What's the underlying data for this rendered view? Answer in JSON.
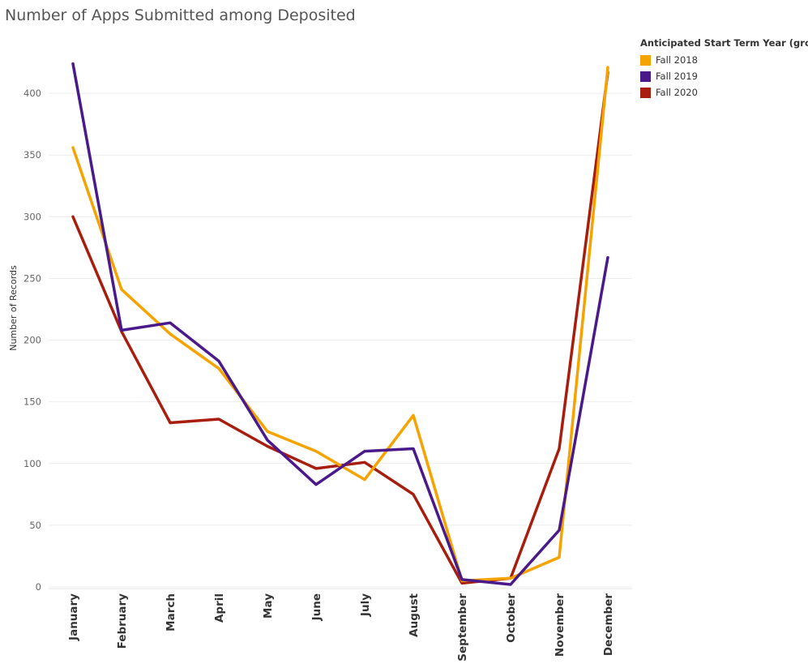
{
  "colors": {
    "Fall 2018": "#f5a300",
    "Fall 2019": "#4a1a8a",
    "Fall 2020": "#a81e0e"
  },
  "chart_data": {
    "type": "line",
    "title": "Number of Apps Submitted among Deposited",
    "xlabel": "",
    "ylabel": "Number of Records",
    "ylim": [
      0,
      425
    ],
    "yticks": [
      0,
      50,
      100,
      150,
      200,
      250,
      300,
      350,
      400
    ],
    "grid": true,
    "legend_position": "top-right",
    "legend_title": "Anticipated Start Term Year (group)",
    "categories": [
      "January",
      "February",
      "March",
      "April",
      "May",
      "June",
      "July",
      "August",
      "September",
      "October",
      "November",
      "December"
    ],
    "series": [
      {
        "name": "Fall 2018",
        "values": [
          356,
          241,
          205,
          177,
          126,
          110,
          87,
          139,
          5,
          7,
          24,
          421
        ]
      },
      {
        "name": "Fall 2019",
        "values": [
          424,
          208,
          214,
          183,
          119,
          83,
          110,
          112,
          6,
          2,
          46,
          267
        ]
      },
      {
        "name": "Fall 2020",
        "values": [
          300,
          207,
          133,
          136,
          114,
          96,
          101,
          75,
          3,
          7,
          112,
          417
        ]
      }
    ]
  }
}
